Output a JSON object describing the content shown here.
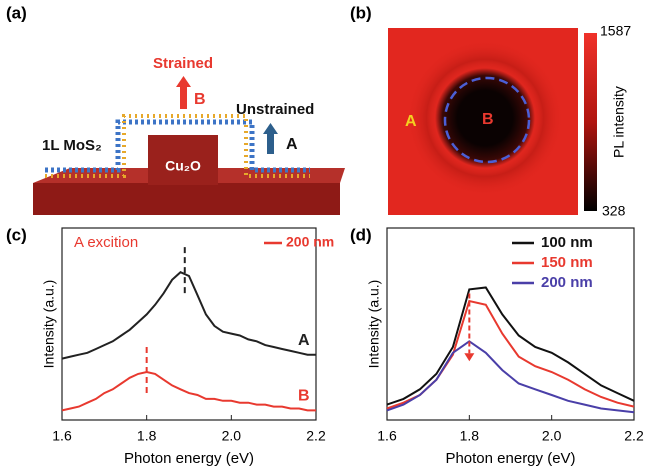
{
  "schematic": {
    "panel_label": "(a)",
    "strained": "Strained",
    "label_b": "B",
    "unstrained": "Unstrained",
    "label_a": "A",
    "layer": "1L MoS₂",
    "core": "Cu₂O"
  },
  "pl_map": {
    "panel_label": "(b)",
    "label_a": "A",
    "label_b": "B",
    "colorbar_label": "PL intensity",
    "colorbar_max": 1587,
    "colorbar_min": 328
  },
  "chart_data": [
    {
      "type": "line",
      "panel_label": "(c)",
      "xlabel": "Photon energy (eV)",
      "ylabel": "Intensity (a.u.)",
      "xlim": [
        1.6,
        2.2
      ],
      "ylim": [
        0,
        1
      ],
      "xticks": [
        1.6,
        1.8,
        {
          "value": 2.0,
          "label": "2.0"
        },
        2.2
      ],
      "annotation": "A excition",
      "legend_text": "200 nm",
      "legend_color": "#e8392f",
      "peak_lines": [
        1.89,
        1.8
      ],
      "peak_colors": [
        "#222222",
        "#e8392f"
      ],
      "x": [
        1.6,
        1.62,
        1.64,
        1.66,
        1.68,
        1.7,
        1.72,
        1.74,
        1.76,
        1.78,
        1.8,
        1.82,
        1.84,
        1.86,
        1.88,
        1.9,
        1.92,
        1.94,
        1.96,
        1.98,
        2.0,
        2.02,
        2.04,
        2.06,
        2.08,
        2.1,
        2.12,
        2.14,
        2.16,
        2.18,
        2.2
      ],
      "series": [
        {
          "name": "A",
          "color": "#222222",
          "values": [
            0.32,
            0.33,
            0.34,
            0.35,
            0.37,
            0.39,
            0.41,
            0.44,
            0.47,
            0.51,
            0.55,
            0.6,
            0.66,
            0.73,
            0.77,
            0.75,
            0.65,
            0.55,
            0.49,
            0.46,
            0.45,
            0.44,
            0.42,
            0.41,
            0.39,
            0.38,
            0.37,
            0.36,
            0.35,
            0.34,
            0.34
          ]
        },
        {
          "name": "B",
          "color": "#e8392f",
          "values": [
            0.05,
            0.06,
            0.07,
            0.09,
            0.11,
            0.14,
            0.16,
            0.19,
            0.22,
            0.24,
            0.25,
            0.24,
            0.21,
            0.18,
            0.16,
            0.14,
            0.13,
            0.11,
            0.11,
            0.1,
            0.1,
            0.09,
            0.09,
            0.08,
            0.08,
            0.07,
            0.07,
            0.06,
            0.06,
            0.05,
            0.05
          ]
        }
      ]
    },
    {
      "type": "line",
      "panel_label": "(d)",
      "xlabel": "Photon energy (eV)",
      "ylabel": "Intensity (a.u.)",
      "xlim": [
        1.6,
        2.2
      ],
      "ylim": [
        0,
        1
      ],
      "xticks": [
        1.6,
        1.8,
        {
          "value": 2.0,
          "label": "2.0"
        },
        2.2
      ],
      "arrow_x": 1.8,
      "arrow_color": "#e8392f",
      "x": [
        1.6,
        1.64,
        1.68,
        1.72,
        1.76,
        1.8,
        1.84,
        1.88,
        1.92,
        1.96,
        2.0,
        2.04,
        2.08,
        2.12,
        2.16,
        2.2
      ],
      "series": [
        {
          "name": "100 nm",
          "color": "#111111",
          "values": [
            0.08,
            0.11,
            0.16,
            0.24,
            0.38,
            0.68,
            0.69,
            0.55,
            0.44,
            0.38,
            0.35,
            0.3,
            0.24,
            0.18,
            0.14,
            0.1
          ]
        },
        {
          "name": "150 nm",
          "color": "#e8392f",
          "values": [
            0.06,
            0.09,
            0.13,
            0.21,
            0.34,
            0.62,
            0.6,
            0.45,
            0.33,
            0.28,
            0.25,
            0.21,
            0.16,
            0.12,
            0.09,
            0.07
          ]
        },
        {
          "name": "200 nm",
          "color": "#4a3fa8",
          "values": [
            0.05,
            0.08,
            0.13,
            0.21,
            0.35,
            0.41,
            0.35,
            0.26,
            0.19,
            0.16,
            0.13,
            0.1,
            0.08,
            0.06,
            0.05,
            0.04
          ]
        }
      ]
    }
  ]
}
